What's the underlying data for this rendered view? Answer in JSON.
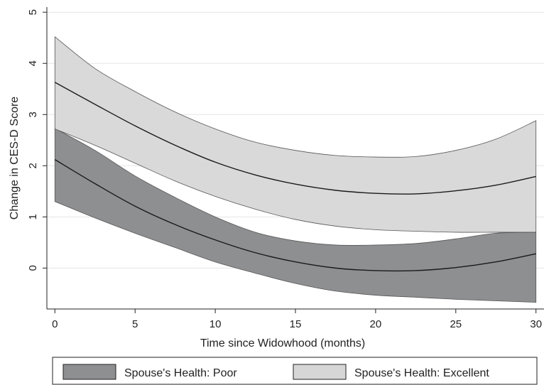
{
  "chart_data": {
    "type": "area",
    "title": "",
    "xlabel": "Time since Widowhood (months)",
    "ylabel": "Change in CES-D Score",
    "xlim": [
      -0.5,
      30.5
    ],
    "ylim": [
      -0.8,
      5.1
    ],
    "x_ticks": [
      0,
      5,
      10,
      15,
      20,
      25,
      30
    ],
    "y_ticks": [
      0,
      1,
      2,
      3,
      4,
      5
    ],
    "grid": true,
    "legend_position": "bottom",
    "x": [
      0,
      2.5,
      5,
      7.5,
      10,
      12.5,
      15,
      17.5,
      20,
      22.5,
      25,
      27.5,
      30
    ],
    "series": [
      {
        "name": "Spouse's Health: Poor",
        "color": "#8e8f91",
        "mean": [
          2.12,
          1.65,
          1.21,
          0.85,
          0.55,
          0.3,
          0.12,
          0.0,
          -0.05,
          -0.05,
          0.01,
          0.12,
          0.28
        ],
        "lower": [
          1.3,
          0.98,
          0.68,
          0.4,
          0.12,
          -0.1,
          -0.3,
          -0.45,
          -0.53,
          -0.57,
          -0.61,
          -0.64,
          -0.67
        ],
        "upper": [
          2.73,
          2.3,
          1.8,
          1.38,
          1.0,
          0.7,
          0.53,
          0.45,
          0.45,
          0.48,
          0.57,
          0.68,
          0.7
        ]
      },
      {
        "name": "Spouse's Health: Excellent",
        "color": "#d6d6d6",
        "mean": [
          3.63,
          3.2,
          2.78,
          2.4,
          2.07,
          1.82,
          1.64,
          1.52,
          1.46,
          1.45,
          1.51,
          1.62,
          1.79
        ],
        "lower": [
          2.72,
          2.4,
          2.05,
          1.7,
          1.4,
          1.15,
          0.95,
          0.82,
          0.75,
          0.72,
          0.7,
          0.7,
          0.7
        ],
        "upper": [
          4.52,
          3.9,
          3.45,
          3.05,
          2.72,
          2.46,
          2.3,
          2.2,
          2.17,
          2.18,
          2.3,
          2.52,
          2.88
        ]
      }
    ]
  }
}
